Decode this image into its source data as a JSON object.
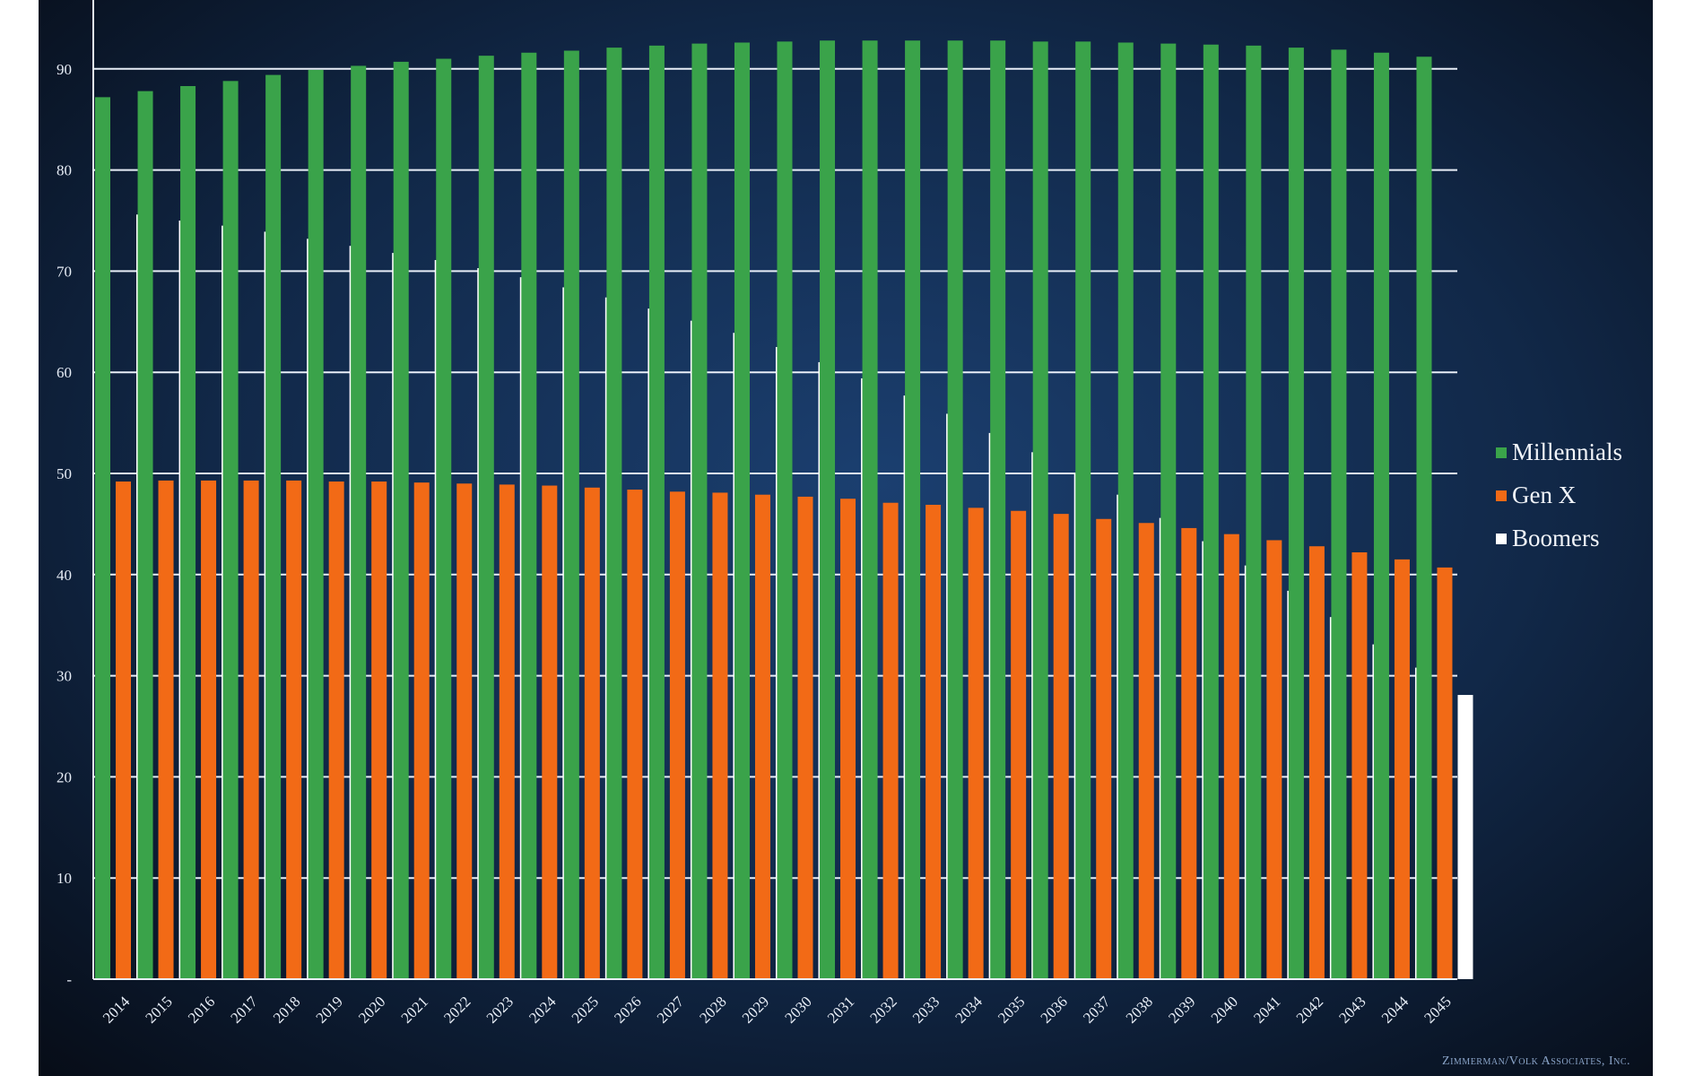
{
  "chart_data": {
    "type": "bar",
    "title": "",
    "xlabel": "",
    "ylabel": "",
    "categories": [
      "2014",
      "2015",
      "2016",
      "2017",
      "2018",
      "2019",
      "2020",
      "2021",
      "2022",
      "2023",
      "2024",
      "2025",
      "2026",
      "2027",
      "2028",
      "2029",
      "2030",
      "2031",
      "2032",
      "2033",
      "2034",
      "2035",
      "2036",
      "2037",
      "2038",
      "2039",
      "2040",
      "2041",
      "2042",
      "2043",
      "2044",
      "2045"
    ],
    "y_ticks": [
      {
        "value": 0,
        "label": "-"
      },
      {
        "value": 10,
        "label": "10"
      },
      {
        "value": 20,
        "label": "20"
      },
      {
        "value": 30,
        "label": "30"
      },
      {
        "value": 40,
        "label": "40"
      },
      {
        "value": 50,
        "label": "50"
      },
      {
        "value": 60,
        "label": "60"
      },
      {
        "value": 70,
        "label": "70"
      },
      {
        "value": 80,
        "label": "80"
      },
      {
        "value": 90,
        "label": "90"
      }
    ],
    "ylim": [
      0,
      97
    ],
    "grid": true,
    "legend_position": "right",
    "series": [
      {
        "name": "Millennials",
        "color": "#3aa34a",
        "values": [
          87.2,
          87.8,
          88.3,
          88.8,
          89.4,
          89.9,
          90.3,
          90.7,
          91.0,
          91.3,
          91.6,
          91.8,
          92.1,
          92.3,
          92.5,
          92.6,
          92.7,
          92.8,
          92.8,
          92.8,
          92.8,
          92.8,
          92.7,
          92.7,
          92.6,
          92.5,
          92.4,
          92.3,
          92.1,
          91.9,
          91.6,
          91.2
        ]
      },
      {
        "name": "Gen X",
        "color": "#f26a16",
        "values": [
          49.2,
          49.3,
          49.3,
          49.3,
          49.3,
          49.2,
          49.2,
          49.1,
          49.0,
          48.9,
          48.8,
          48.6,
          48.4,
          48.2,
          48.1,
          47.9,
          47.7,
          47.5,
          47.1,
          46.9,
          46.6,
          46.3,
          46.0,
          45.5,
          45.1,
          44.6,
          44.0,
          43.4,
          42.8,
          42.2,
          41.5,
          40.7
        ]
      },
      {
        "name": "Boomers",
        "color": "#ffffff",
        "values": [
          75.6,
          75.0,
          74.5,
          73.9,
          73.2,
          72.5,
          71.8,
          71.1,
          70.3,
          69.4,
          68.4,
          67.4,
          66.3,
          65.1,
          63.9,
          62.5,
          61.0,
          59.4,
          57.7,
          55.9,
          54.0,
          52.1,
          50.0,
          47.9,
          45.6,
          43.3,
          40.9,
          38.4,
          35.8,
          33.1,
          30.8,
          28.1
        ]
      }
    ]
  },
  "credit": "Zimmerman/Volk Associates, Inc."
}
